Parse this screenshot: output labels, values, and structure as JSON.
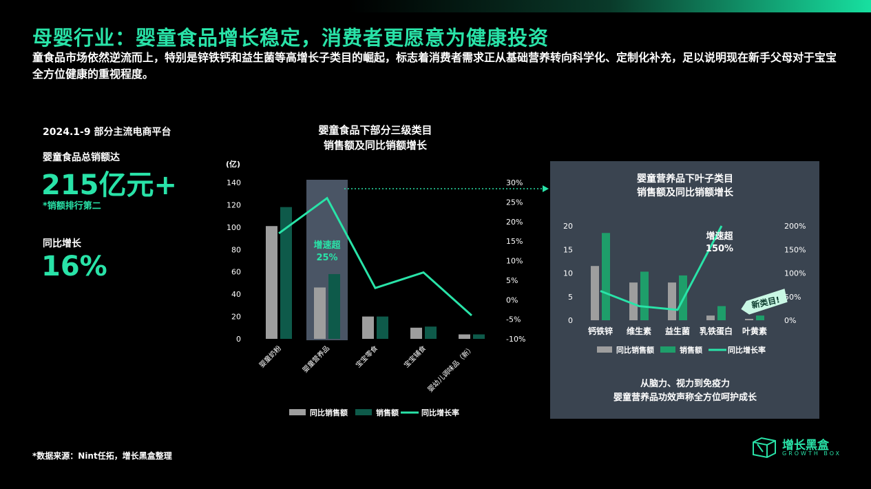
{
  "title": "母婴行业：婴童食品增长稳定，消费者更愿意为健康投资",
  "subtitle": "童食品市场依然逆流而上，特别是锌铁钙和益生菌等高增长子类目的崛起，标志着消费者需求正从基础营养转向科学化、定制化补充，足以说明现在新手父母对于宝宝全方位健康的重视程度。",
  "kpi": {
    "period": "2024.1-9  部分主流电商平台",
    "sales_label": "婴童食品总销额达",
    "sales_value": "215亿元+",
    "sales_note": "*销额排行第二",
    "growth_label": "同比增长",
    "growth_value": "16%"
  },
  "source": "*数据来源：Nint任拓，增长黑盒整理",
  "logo": {
    "name": "增长黑盒",
    "sub": "GROWTH BOX",
    "icon": "box-logo-icon"
  },
  "colors": {
    "accent": "#29e3a8",
    "prev_bar": "#9e9e9e",
    "bar": "#0e5a4a",
    "bar2": "#1e9e6a",
    "panel": "#3a4450"
  },
  "chart_data": [
    {
      "type": "bar",
      "title": "婴童食品下部分三级类目\n销售额及同比销额增长",
      "unit_label": "(亿)",
      "categories": [
        "婴童奶粉",
        "婴童营养品",
        "宝宝零食",
        "宝宝辅食",
        "婴幼儿调味品（新）"
      ],
      "series": [
        {
          "name": "同比销售额",
          "kind": "bar",
          "values": [
            101,
            46,
            20,
            10,
            4
          ]
        },
        {
          "name": "销售额",
          "kind": "bar",
          "values": [
            118,
            58,
            20,
            11,
            4
          ]
        },
        {
          "name": "同比增长率",
          "kind": "line",
          "axis": "right",
          "values": [
            17,
            26,
            3,
            7,
            -4
          ]
        }
      ],
      "y_left": {
        "ticks": [
          "0",
          "20",
          "40",
          "60",
          "80",
          "100",
          "120",
          "140"
        ],
        "range": [
          0,
          140
        ]
      },
      "y_right": {
        "ticks": [
          "-10%",
          "-5%",
          "0%",
          "5%",
          "10%",
          "15%",
          "20%",
          "25%",
          "30%"
        ],
        "range": [
          -10,
          30
        ]
      },
      "annotation": "增速超\n25%",
      "highlight_category": "婴童营养品",
      "legend": "bottom"
    },
    {
      "type": "bar",
      "title": "婴童营养品下叶子类目\n销售额及同比销额增长",
      "categories": [
        "钙铁锌",
        "维生素",
        "益生菌",
        "乳铁蛋白",
        "叶黄素"
      ],
      "series": [
        {
          "name": "同比销售额",
          "kind": "bar",
          "values": [
            11.5,
            8,
            8,
            1,
            0.3
          ]
        },
        {
          "name": "销售额",
          "kind": "bar",
          "values": [
            18.5,
            10.3,
            9.5,
            3,
            1
          ]
        },
        {
          "name": "同比增长率",
          "kind": "line",
          "axis": "right",
          "values": [
            62,
            30,
            22,
            200,
            null
          ]
        }
      ],
      "y_left": {
        "ticks": [
          "0",
          "5",
          "10",
          "15",
          "20"
        ],
        "range": [
          0,
          20
        ]
      },
      "y_right": {
        "ticks": [
          "0%",
          "50%",
          "100%",
          "150%",
          "200%"
        ],
        "range": [
          0,
          200
        ]
      },
      "annotation": "增速超\n150%",
      "new_tag": "新类目!",
      "footer": "从脑力、视力到免疫力\n婴童营养品功效声称全方位呵护成长",
      "legend": "bottom"
    }
  ]
}
